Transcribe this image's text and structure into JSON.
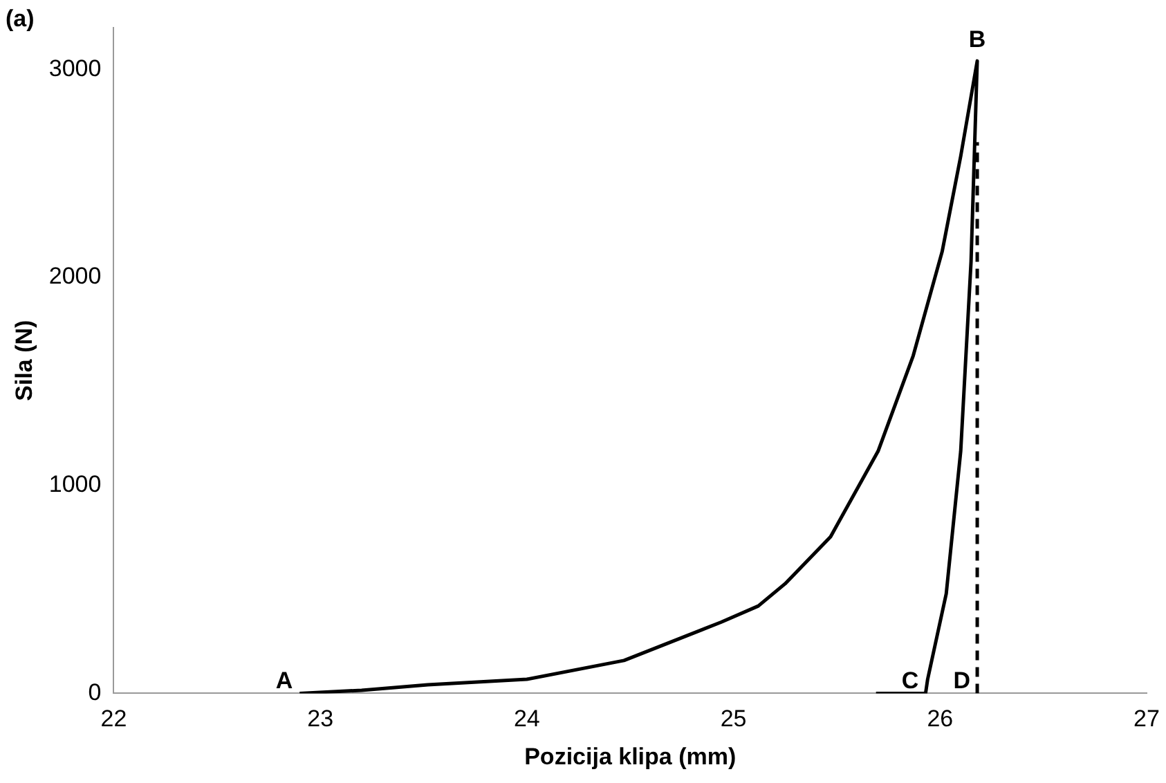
{
  "chart_data": {
    "type": "line",
    "xlabel": "Pozicija klipa (mm)",
    "ylabel": "Sila (N)",
    "xlim": [
      22,
      27
    ],
    "xticks": [
      22,
      23,
      24,
      25,
      26,
      27
    ],
    "ylim": [
      0,
      3200
    ],
    "yticks": [
      0,
      1000,
      2000,
      3000
    ],
    "grid": false,
    "legend": false,
    "marker": "none",
    "series": [
      {
        "color": "#000000",
        "line_style": "solid",
        "x": [
          22.9,
          23.2,
          23.52,
          24.0,
          24.47,
          24.94,
          25.12,
          25.25,
          25.47,
          25.7,
          25.87,
          26.01,
          26.1,
          26.18,
          26.15,
          26.1,
          26.03,
          25.94,
          25.93,
          25.69
        ],
        "values": [
          0,
          15,
          41,
          68,
          158,
          342,
          420,
          527,
          753,
          1164,
          1623,
          2123,
          2582,
          3040,
          2075,
          1164,
          479,
          68,
          0,
          0
        ]
      },
      {
        "color": "#000000",
        "line_style": "dashed",
        "x": [
          26.18,
          26.18
        ],
        "values": [
          0,
          2650
        ]
      }
    ],
    "annotations": [
      "(a)",
      {
        "text": "A",
        "x": 22.9,
        "y": 0
      },
      {
        "text": "B",
        "x": 26.18,
        "y": 3040
      },
      {
        "text": "C",
        "x": 25.93,
        "y": 0
      },
      {
        "text": "D",
        "x": 26.18,
        "y": 0
      }
    ]
  }
}
